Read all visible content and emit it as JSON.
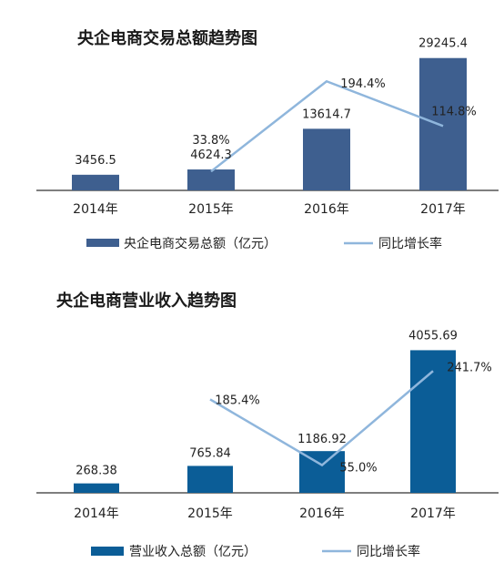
{
  "chart_data": [
    {
      "type": "bar",
      "title": "央企电商交易总额趋势图",
      "categories": [
        "2014年",
        "2015年",
        "2016年",
        "2017年"
      ],
      "series": [
        {
          "name": "央企电商交易总额（亿元）",
          "type": "bar",
          "values": [
            3456.5,
            4624.3,
            13614.7,
            29245.4
          ],
          "labels": [
            "3456.5",
            "4624.3",
            "13614.7",
            "29245.4"
          ],
          "color": "#3e5f8f"
        },
        {
          "name": "同比增长率",
          "type": "line",
          "values": [
            null,
            33.8,
            194.4,
            114.8
          ],
          "labels": [
            "",
            "33.8%",
            "194.4%",
            "114.8%"
          ],
          "color": "#8fb6dc"
        }
      ],
      "ylim": [
        0,
        31000
      ],
      "ylim_secondary": [
        0,
        250
      ],
      "grid": false,
      "legend": "bottom"
    },
    {
      "type": "bar",
      "title": "央企电商营业收入趋势图",
      "categories": [
        "2014年",
        "2015年",
        "2016年",
        "2017年"
      ],
      "series": [
        {
          "name": "营业收入总额（亿元）",
          "type": "bar",
          "values": [
            268.38,
            765.84,
            1186.92,
            4055.69
          ],
          "labels": [
            "268.38",
            "765.84",
            "1186.92",
            "4055.69"
          ],
          "color": "#0b5d97"
        },
        {
          "name": "同比增长率",
          "type": "line",
          "values": [
            null,
            185.4,
            55.0,
            241.7
          ],
          "labels": [
            "",
            "185.4%",
            "55.0%",
            "241.7%"
          ],
          "color": "#8fb6dc"
        }
      ],
      "ylim": [
        0,
        4300
      ],
      "ylim_secondary": [
        0,
        300
      ],
      "grid": false,
      "legend": "bottom"
    }
  ]
}
